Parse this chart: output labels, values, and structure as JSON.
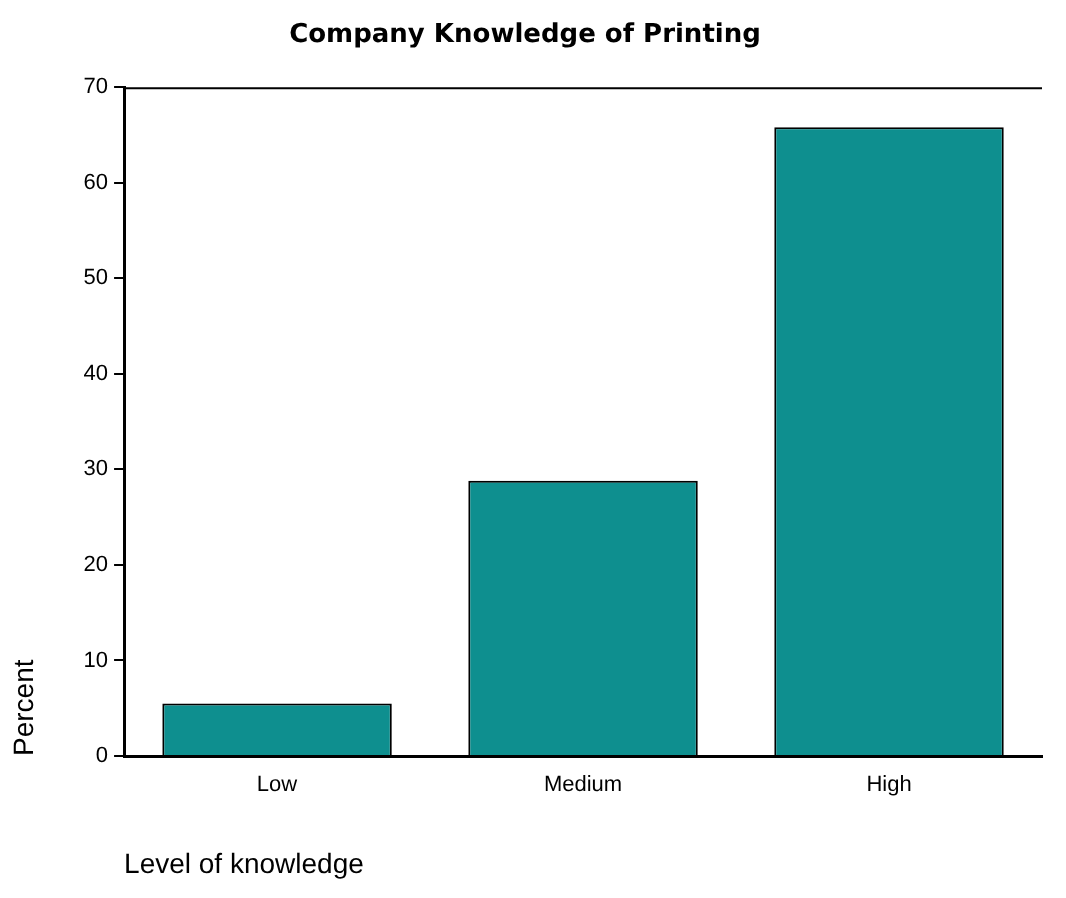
{
  "chart_data": {
    "type": "bar",
    "title": "Company Knowledge of Printing",
    "categories": [
      "Low",
      "Medium",
      "High"
    ],
    "values": [
      5.5,
      28.8,
      65.8
    ],
    "color": "#0e8f8f",
    "xlabel": "Level of knowledge",
    "ylabel": "Percent",
    "ylim": [
      0,
      70
    ],
    "yticks": [
      0,
      10,
      20,
      30,
      40,
      50,
      60,
      70
    ],
    "grid": false,
    "legend": false
  }
}
